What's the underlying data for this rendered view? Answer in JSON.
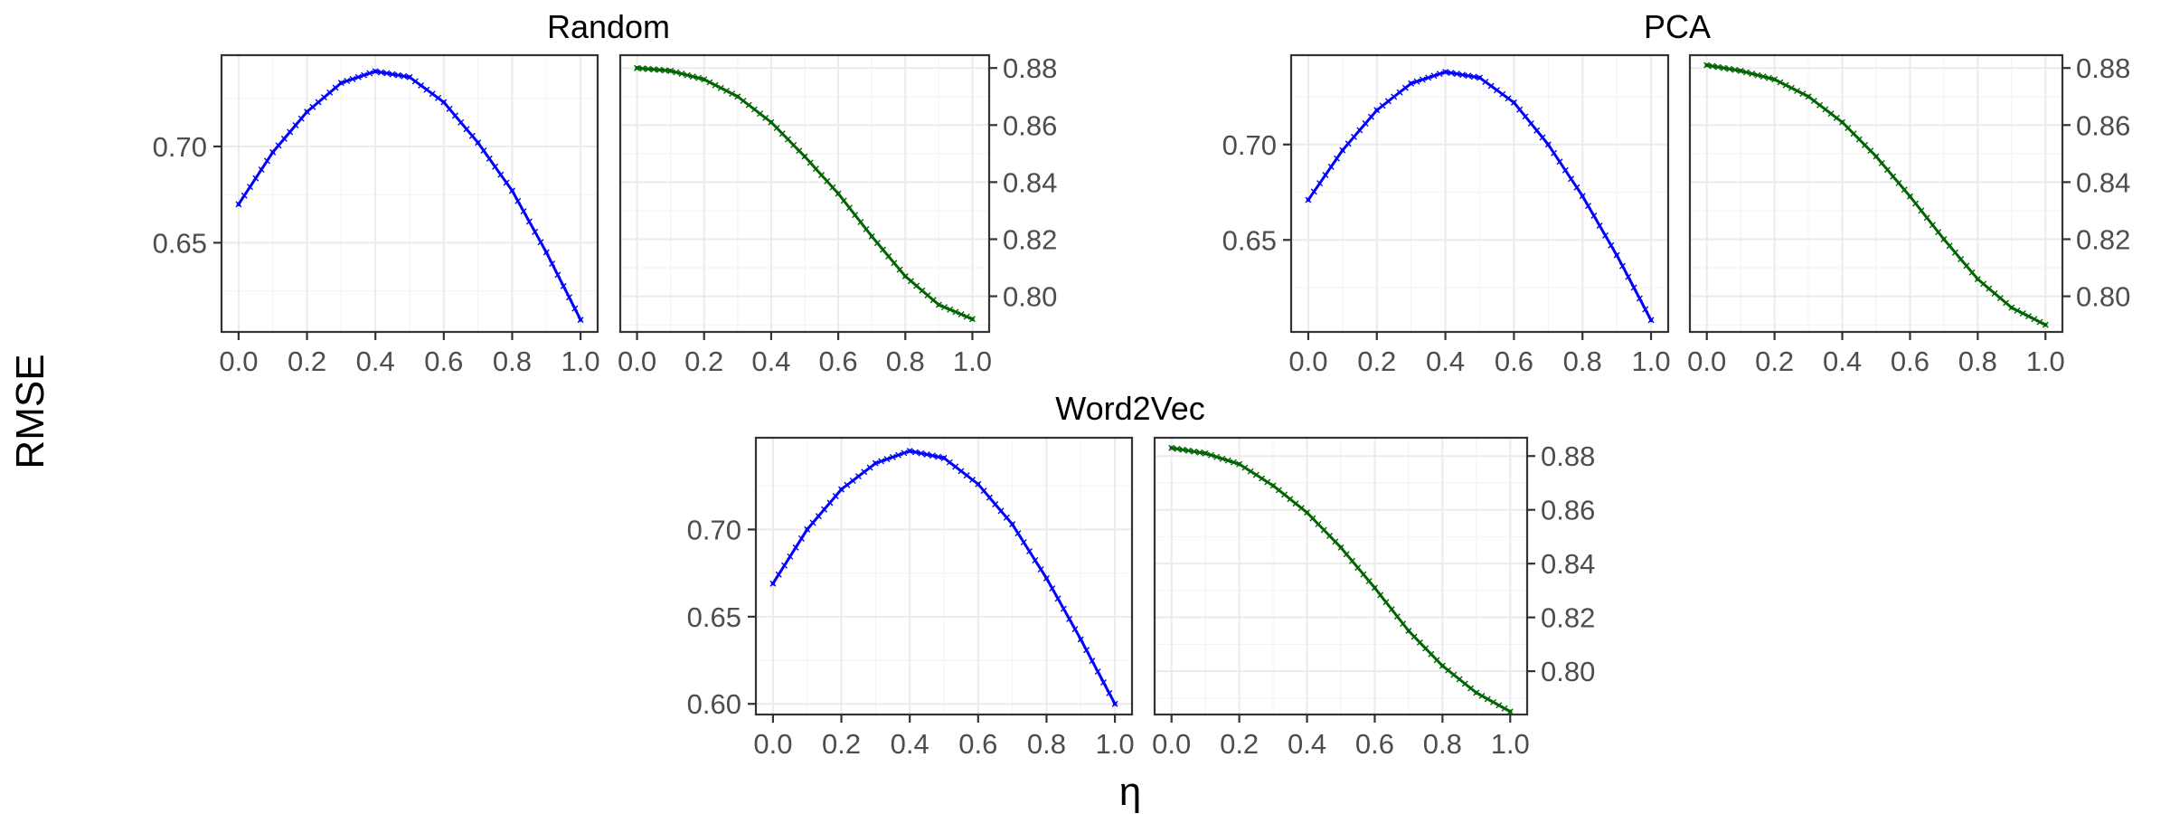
{
  "ylabel": "RMSE",
  "xlabel": "η",
  "chart_data": [
    {
      "type": "line",
      "group": "Random",
      "xlabel": "η",
      "ylabel": "RMSE",
      "x_ticks": [
        0.0,
        0.2,
        0.4,
        0.6,
        0.8,
        1.0
      ],
      "x_tick_labels": [
        "0.0",
        "0.2",
        "0.4",
        "0.6",
        "0.8",
        "1.0"
      ],
      "panels": [
        {
          "y_axis_side": "left",
          "color": "#0000ff",
          "marker": "x",
          "xlim": [
            -0.05,
            1.05
          ],
          "ylim": [
            0.6037,
            0.7474
          ],
          "y_ticks": [
            0.65,
            0.7
          ],
          "y_tick_labels": [
            "0.65",
            "0.70"
          ],
          "series": [
            {
              "x": [
                0.0,
                0.1,
                0.2,
                0.3,
                0.4,
                0.5,
                0.6,
                0.7,
                0.8,
                0.9,
                1.0
              ],
              "values": [
                0.67,
                0.697,
                0.718,
                0.733,
                0.739,
                0.736,
                0.723,
                0.702,
                0.677,
                0.645,
                0.61
              ]
            }
          ]
        },
        {
          "y_axis_side": "right",
          "color": "#006400",
          "marker": "x",
          "xlim": [
            -0.05,
            1.05
          ],
          "ylim": [
            0.7875,
            0.8845
          ],
          "y_ticks": [
            0.8,
            0.82,
            0.84,
            0.86,
            0.88
          ],
          "y_tick_labels": [
            "0.80",
            "0.82",
            "0.84",
            "0.86",
            "0.88"
          ],
          "series": [
            {
              "x": [
                0.0,
                0.1,
                0.2,
                0.3,
                0.4,
                0.5,
                0.6,
                0.7,
                0.8,
                0.9,
                1.0
              ],
              "values": [
                0.88,
                0.879,
                0.876,
                0.87,
                0.861,
                0.849,
                0.836,
                0.821,
                0.807,
                0.797,
                0.792
              ]
            }
          ]
        }
      ]
    },
    {
      "type": "line",
      "group": "PCA",
      "xlabel": "η",
      "ylabel": "RMSE",
      "x_ticks": [
        0.0,
        0.2,
        0.4,
        0.6,
        0.8,
        1.0
      ],
      "x_tick_labels": [
        "0.0",
        "0.2",
        "0.4",
        "0.6",
        "0.8",
        "1.0"
      ],
      "panels": [
        {
          "y_axis_side": "left",
          "color": "#0000ff",
          "marker": "x",
          "xlim": [
            -0.05,
            1.05
          ],
          "ylim": [
            0.6018,
            0.7468
          ],
          "y_ticks": [
            0.65,
            0.7
          ],
          "y_tick_labels": [
            "0.65",
            "0.70"
          ],
          "series": [
            {
              "x": [
                0.0,
                0.1,
                0.2,
                0.3,
                0.4,
                0.5,
                0.6,
                0.7,
                0.8,
                0.9,
                1.0
              ],
              "values": [
                0.671,
                0.697,
                0.718,
                0.732,
                0.738,
                0.735,
                0.722,
                0.7,
                0.673,
                0.642,
                0.608
              ]
            }
          ]
        },
        {
          "y_axis_side": "right",
          "color": "#006400",
          "marker": "x",
          "xlim": [
            -0.05,
            1.05
          ],
          "ylim": [
            0.7875,
            0.8845
          ],
          "y_ticks": [
            0.8,
            0.82,
            0.84,
            0.86,
            0.88
          ],
          "y_tick_labels": [
            "0.80",
            "0.82",
            "0.84",
            "0.86",
            "0.88"
          ],
          "series": [
            {
              "x": [
                0.0,
                0.1,
                0.2,
                0.3,
                0.4,
                0.5,
                0.6,
                0.7,
                0.8,
                0.9,
                1.0
              ],
              "values": [
                0.881,
                0.879,
                0.876,
                0.87,
                0.861,
                0.849,
                0.835,
                0.82,
                0.806,
                0.796,
                0.79
              ]
            }
          ]
        }
      ]
    },
    {
      "type": "line",
      "group": "Word2Vec",
      "xlabel": "η",
      "ylabel": "RMSE",
      "x_ticks": [
        0.0,
        0.2,
        0.4,
        0.6,
        0.8,
        1.0
      ],
      "x_tick_labels": [
        "0.0",
        "0.2",
        "0.4",
        "0.6",
        "0.8",
        "1.0"
      ],
      "panels": [
        {
          "y_axis_side": "left",
          "color": "#0000ff",
          "marker": "x",
          "xlim": [
            -0.05,
            1.05
          ],
          "ylim": [
            0.5939,
            0.7526
          ],
          "y_ticks": [
            0.6,
            0.65,
            0.7
          ],
          "y_tick_labels": [
            "0.60",
            "0.65",
            "0.70"
          ],
          "series": [
            {
              "x": [
                0.0,
                0.1,
                0.2,
                0.3,
                0.4,
                0.5,
                0.6,
                0.7,
                0.8,
                0.9,
                1.0
              ],
              "values": [
                0.669,
                0.7,
                0.723,
                0.738,
                0.745,
                0.741,
                0.726,
                0.703,
                0.672,
                0.637,
                0.6
              ]
            }
          ]
        },
        {
          "y_axis_side": "right",
          "color": "#006400",
          "marker": "x",
          "xlim": [
            -0.05,
            1.05
          ],
          "ylim": [
            0.7839,
            0.8868
          ],
          "y_ticks": [
            0.8,
            0.82,
            0.84,
            0.86,
            0.88
          ],
          "y_tick_labels": [
            "0.80",
            "0.82",
            "0.84",
            "0.86",
            "0.88"
          ],
          "series": [
            {
              "x": [
                0.0,
                0.1,
                0.2,
                0.3,
                0.4,
                0.5,
                0.6,
                0.7,
                0.8,
                0.9,
                1.0
              ],
              "values": [
                0.883,
                0.881,
                0.877,
                0.869,
                0.859,
                0.846,
                0.831,
                0.815,
                0.802,
                0.792,
                0.785
              ]
            }
          ]
        }
      ]
    }
  ]
}
